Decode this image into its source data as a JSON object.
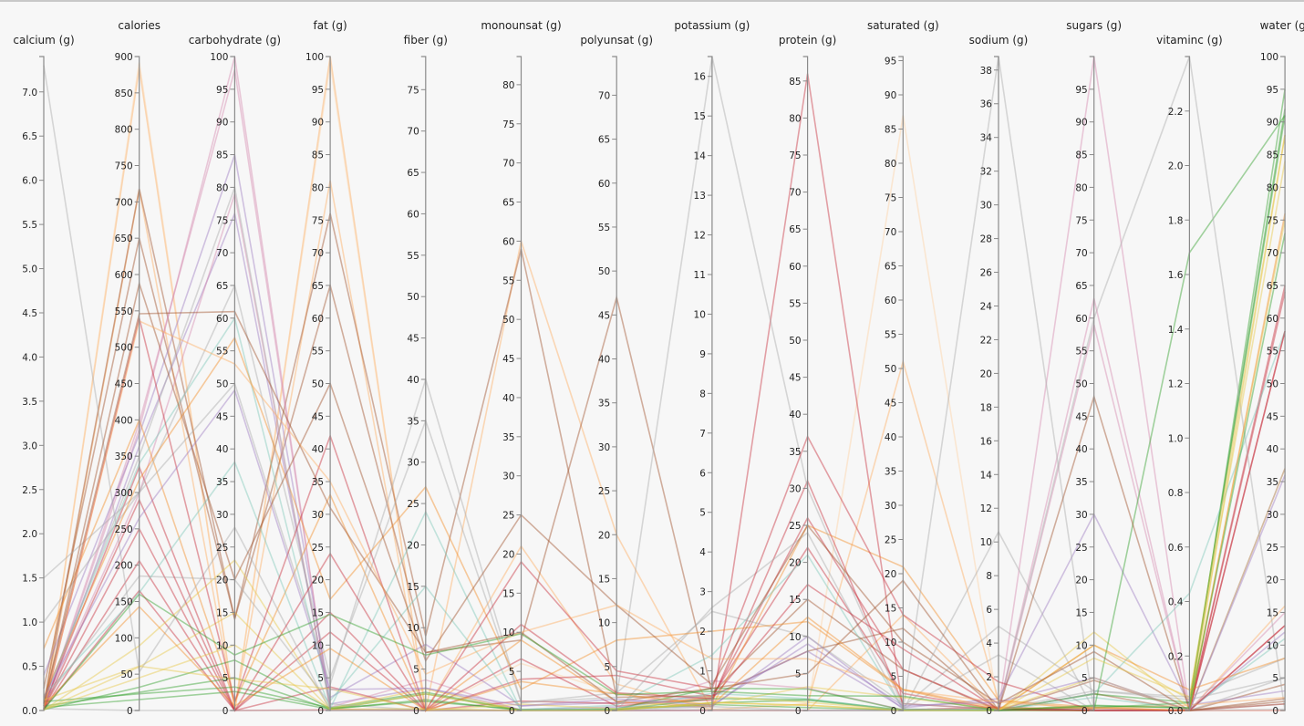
{
  "chart_data": {
    "type": "parallel-coordinates",
    "axes": [
      {
        "label": "calcium (g)",
        "min": 0,
        "max": 7.4,
        "tick_step": 0.5,
        "tick_max": 7.0,
        "decimals": 1
      },
      {
        "label": "calories",
        "min": 0,
        "max": 900,
        "tick_step": 50,
        "tick_max": 900,
        "decimals": 0
      },
      {
        "label": "carbohydrate (g)",
        "min": 0,
        "max": 100,
        "tick_step": 5,
        "tick_max": 100,
        "decimals": 0
      },
      {
        "label": "fat (g)",
        "min": 0,
        "max": 100,
        "tick_step": 5,
        "tick_max": 100,
        "decimals": 0
      },
      {
        "label": "fiber (g)",
        "min": 0,
        "max": 79,
        "tick_step": 5,
        "tick_max": 75,
        "decimals": 0
      },
      {
        "label": "monounsat (g)",
        "min": 0,
        "max": 83.6,
        "tick_step": 5,
        "tick_max": 80,
        "decimals": 0
      },
      {
        "label": "polyunsat (g)",
        "min": 0,
        "max": 74.4,
        "tick_step": 5,
        "tick_max": 70,
        "decimals": 0
      },
      {
        "label": "potassium (g)",
        "min": 0,
        "max": 16.5,
        "tick_step": 1,
        "tick_max": 16,
        "decimals": 0
      },
      {
        "label": "protein (g)",
        "min": 0,
        "max": 88.3,
        "tick_step": 5,
        "tick_max": 85,
        "decimals": 0
      },
      {
        "label": "saturated (g)",
        "min": 0,
        "max": 95.6,
        "tick_step": 5,
        "tick_max": 95,
        "decimals": 0
      },
      {
        "label": "sodium (g)",
        "min": 0,
        "max": 38.8,
        "tick_step": 2,
        "tick_max": 38,
        "decimals": 0
      },
      {
        "label": "sugars (g)",
        "min": 0,
        "max": 100,
        "tick_step": 5,
        "tick_max": 95,
        "decimals": 0
      },
      {
        "label": "vitaminc (g)",
        "min": 0,
        "max": 2.4,
        "tick_step": 0.2,
        "tick_max": 2.2,
        "decimals": 1
      },
      {
        "label": "water (g)",
        "min": 0,
        "max": 100,
        "tick_step": 5,
        "tick_max": 100,
        "decimals": 0
      }
    ],
    "series": [
      {
        "color": "#fdae61",
        "values": [
          0,
          884,
          0,
          100,
          0,
          60,
          20,
          0,
          0,
          14,
          0,
          0,
          0,
          0
        ]
      },
      {
        "color": "#fdae61",
        "values": [
          0.02,
          717,
          0.1,
          81,
          0,
          21,
          3,
          0.02,
          0.9,
          51,
          0.6,
          0.1,
          0,
          16
        ]
      },
      {
        "color": "#fdd0a2",
        "values": [
          0,
          892,
          0,
          99,
          0,
          6,
          2,
          0,
          0,
          87,
          0,
          0,
          0,
          0
        ]
      },
      {
        "color": "#a0522d",
        "values": [
          0.25,
          650,
          14,
          65,
          7,
          9,
          47,
          0.44,
          15,
          6,
          0,
          2.6,
          0,
          4
        ]
      },
      {
        "color": "#a0522d",
        "values": [
          0.08,
          718,
          14,
          76,
          9,
          59,
          1.5,
          0.37,
          8,
          12,
          0,
          4.6,
          0,
          1.4
        ]
      },
      {
        "color": "#d48ab0",
        "values": [
          0,
          387,
          100,
          0,
          0,
          0,
          0,
          0,
          0,
          0,
          0,
          100,
          0,
          0
        ]
      },
      {
        "color": "#d48ab0",
        "values": [
          0.01,
          396,
          98,
          0.2,
          0,
          0,
          0,
          0,
          0,
          0.1,
          0.04,
          63,
          0,
          1
        ]
      },
      {
        "color": "#9e7cc1",
        "values": [
          0.4,
          380,
          85,
          2,
          8,
          0.6,
          0.9,
          0.35,
          8,
          0.4,
          0.7,
          30,
          0.02,
          3
        ]
      },
      {
        "color": "#9e7cc1",
        "values": [
          0.02,
          364,
          76,
          1,
          2.7,
          0.1,
          0.4,
          0.1,
          10,
          0.2,
          0,
          0.3,
          0,
          12
        ]
      },
      {
        "color": "#d48ab0",
        "values": [
          0.05,
          299,
          79,
          0.5,
          3.7,
          0,
          0,
          0.75,
          3,
          0.1,
          0.01,
          59,
          0.002,
          15
        ]
      },
      {
        "color": "#c8303f",
        "values": [
          0.02,
          250,
          0,
          15,
          0,
          6.6,
          0.5,
          0.32,
          26,
          6,
          0.07,
          0,
          0,
          58
        ]
      },
      {
        "color": "#c8303f",
        "values": [
          0.015,
          165,
          0,
          3.6,
          0,
          1.2,
          0.8,
          0.26,
          31,
          1,
          0.07,
          0,
          0,
          65
        ]
      },
      {
        "color": "#c8303f",
        "values": [
          0.01,
          206,
          0,
          12,
          0,
          4,
          4,
          0.36,
          22,
          2.5,
          0.06,
          0,
          0,
          64
        ]
      },
      {
        "color": "#c8303f",
        "values": [
          0.05,
          335,
          0,
          0.1,
          0,
          0,
          0,
          0.01,
          86,
          0.1,
          0.2,
          0,
          0,
          13
        ]
      },
      {
        "color": "#f28e2b",
        "values": [
          0.7,
          400,
          1.3,
          33,
          0,
          9,
          1,
          0.1,
          25,
          21,
          0.6,
          0.5,
          0,
          37
        ]
      },
      {
        "color": "#33a02c",
        "values": [
          0.05,
          25,
          5,
          0.2,
          2,
          0,
          0.1,
          0.3,
          1.5,
          0.05,
          0.03,
          2.5,
          0.03,
          92
        ]
      },
      {
        "color": "#33a02c",
        "values": [
          0.1,
          23,
          3.6,
          0.4,
          2.2,
          0,
          0.2,
          0.56,
          2.9,
          0.06,
          0.08,
          0.4,
          0.028,
          91
        ]
      },
      {
        "color": "#33a02c",
        "values": [
          0.036,
          15,
          2.9,
          0.2,
          1.3,
          0,
          0.1,
          0.19,
          1.4,
          0.02,
          0.03,
          0.8,
          0.009,
          95
        ]
      },
      {
        "color": "#e6c84a",
        "values": [
          0.01,
          60,
          15,
          0.2,
          2,
          0,
          0,
          0.2,
          0.7,
          0,
          0,
          10,
          0.04,
          84
        ]
      },
      {
        "color": "#e6c84a",
        "values": [
          0.005,
          89,
          23,
          0.3,
          2.6,
          0,
          0.1,
          0.36,
          1.1,
          0.1,
          0,
          12,
          0.009,
          75
        ]
      },
      {
        "color": "#7fc8b8",
        "values": [
          0.12,
          340,
          60,
          1.5,
          15,
          0.1,
          0.6,
          1.4,
          21,
          0.2,
          0.02,
          2,
          0.005,
          11
        ]
      },
      {
        "color": "#aaaaaa",
        "values": [
          1.5,
          300,
          65,
          5,
          35,
          1,
          2,
          2.5,
          10,
          1,
          0.08,
          3,
          0.05,
          8
        ]
      },
      {
        "color": "#aaaaaa",
        "values": [
          0.02,
          0,
          0,
          0,
          0,
          0,
          0,
          0.008,
          0,
          0,
          38.8,
          0,
          0,
          0.2
        ]
      },
      {
        "color": "#aaaaaa",
        "values": [
          7.3,
          53,
          28,
          0,
          0.2,
          0,
          0,
          0.02,
          0,
          0,
          10.6,
          0,
          0,
          5
        ]
      },
      {
        "color": "#aaaaaa",
        "values": [
          0.1,
          185,
          20,
          1,
          0,
          0,
          0,
          2.6,
          24,
          0.2,
          3.3,
          0,
          0,
          37
        ]
      },
      {
        "color": "#aaaaaa",
        "values": [
          1.0,
          300,
          50,
          4,
          40,
          1,
          1.5,
          16.5,
          30,
          0.5,
          5,
          3,
          0.04,
          5
        ]
      },
      {
        "color": "#33a02c",
        "values": [
          0.01,
          32,
          7.7,
          0.3,
          1.1,
          0.1,
          0.1,
          0.15,
          0.4,
          0.07,
          0.007,
          0,
          1.68,
          91
        ]
      },
      {
        "color": "#7fc8b8",
        "values": [
          0.17,
          162,
          38,
          0.3,
          24,
          0,
          0.2,
          0.43,
          1.6,
          0,
          0,
          2.6,
          0.43,
          58
        ]
      },
      {
        "color": "#f28e2b",
        "values": [
          0.15,
          318,
          57,
          17,
          27,
          2.7,
          8,
          2,
          12,
          3,
          0.03,
          10,
          0.076,
          8
        ]
      },
      {
        "color": "#aaaaaa",
        "values": [
          0.1,
          350,
          80,
          0,
          0,
          0,
          0,
          0.1,
          0,
          0,
          0.1,
          60,
          2.4,
          0
        ]
      },
      {
        "color": "#c8303f",
        "values": [
          0.02,
          290,
          0,
          24,
          0,
          11,
          2,
          0.3,
          17,
          9,
          0.06,
          0,
          0,
          58
        ]
      },
      {
        "color": "#c8303f",
        "values": [
          0.01,
          540,
          1.4,
          42,
          0,
          19,
          4.5,
          0.56,
          37,
          14,
          1.7,
          0,
          0,
          13
        ]
      },
      {
        "color": "#a0522d",
        "values": [
          0.07,
          546,
          61,
          31,
          7,
          10,
          1,
          0.56,
          5,
          19,
          0.02,
          48,
          0,
          1
        ]
      },
      {
        "color": "#a0522d",
        "values": [
          0.05,
          588,
          20,
          50,
          6,
          25,
          12,
          0.65,
          25,
          10,
          0.4,
          9,
          0,
          1.8
        ]
      },
      {
        "color": "#fdae61",
        "values": [
          0.02,
          536,
          53,
          35,
          4.4,
          10,
          12,
          1.3,
          7,
          3,
          0.5,
          0.3,
          0.02,
          2
        ]
      },
      {
        "color": "#f28e2b",
        "values": [
          0.056,
          143,
          0.7,
          9.5,
          0,
          3.7,
          1.9,
          0.14,
          12.6,
          3.1,
          0.14,
          0.4,
          0,
          76
        ]
      },
      {
        "color": "#e6c84a",
        "values": [
          0.12,
          61,
          4.8,
          3.3,
          0,
          0.8,
          0.2,
          0.15,
          3.2,
          1.9,
          0.04,
          5,
          0,
          88
        ]
      },
      {
        "color": "#9e7cc1",
        "values": [
          0.15,
          265,
          49,
          3.2,
          2.7,
          0.6,
          1.3,
          0.13,
          9,
          0.7,
          0.5,
          5,
          0,
          36
        ]
      },
      {
        "color": "#e6c84a",
        "values": [
          0.01,
          45,
          10,
          0.2,
          0.2,
          0,
          0,
          0.2,
          0.7,
          0,
          0,
          8,
          0.05,
          88
        ]
      },
      {
        "color": "#33a02c",
        "values": [
          0.012,
          160,
          8.5,
          14.7,
          6.7,
          9.8,
          1.8,
          0.48,
          2,
          2.1,
          0.007,
          0.7,
          0.01,
          73
        ]
      }
    ],
    "grid": false,
    "legend": "none"
  }
}
